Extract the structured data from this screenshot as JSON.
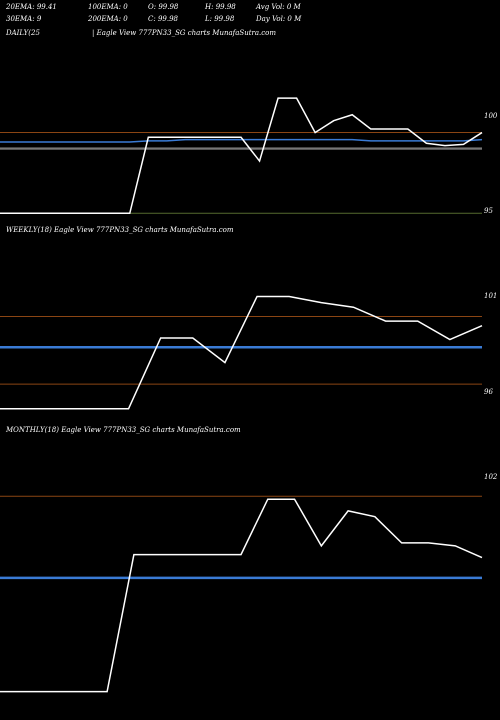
{
  "stats": {
    "ema20": "20EMA: 99.41",
    "ema100": "100EMA: 0",
    "open": "O: 99.98",
    "high": "H: 99.98",
    "avg_vol": "Avg Vol: 0  M",
    "ema30": "30EMA: 9",
    "ema200": "200EMA: 0",
    "close": "C: 99.98",
    "low": "L: 99.98",
    "day_vol": "Day Vol: 0  M"
  },
  "panels": [
    {
      "title": "DAILY(25",
      "subtitle": "| Eagle   View   777PN33_SG charts MunafaSutra.com"
    },
    {
      "title": "WEEKLY(18) Eagle   View   777PN33_SG charts MunafaSutra.com",
      "subtitle": ""
    },
    {
      "title": "MONTHLY(18) Eagle   View   777PN33_SG charts MunafaSutra.com",
      "subtitle": ""
    }
  ],
  "colors": {
    "background": "#000000",
    "price_line": "#ffffff",
    "ema_line": "#3a7bd5",
    "level_line": "#8b4513",
    "level_line_gray": "#888888",
    "level_line_green": "#556b2f"
  },
  "chart_data": [
    {
      "type": "line",
      "name": "daily",
      "y_ticks": [
        "100",
        "95"
      ],
      "ylim": [
        93.6,
        108.6
      ],
      "price": [
        94,
        94,
        94,
        94,
        94,
        94,
        94,
        94,
        100.4,
        100.4,
        100.4,
        100.4,
        100.4,
        100.4,
        98.4,
        103.7,
        103.7,
        100.8,
        101.8,
        102.3,
        101.1,
        101.1,
        101.1,
        99.9,
        99.7,
        99.8,
        100.8
      ],
      "ema": [
        100,
        100,
        100,
        100,
        100,
        100,
        100,
        100,
        100.1,
        100.1,
        100.2,
        100.2,
        100.2,
        100.2,
        100.2,
        100.2,
        100.2,
        100.2,
        100.2,
        100.2,
        100.1,
        100.1,
        100.1,
        100.1,
        100.1,
        100.1,
        100.2
      ],
      "levels": [
        {
          "value": 100.8,
          "color": "level"
        },
        {
          "value": 99.5,
          "color": "gray"
        },
        {
          "value": 99.4,
          "color": "gray"
        },
        {
          "value": 94,
          "color": "green"
        }
      ]
    },
    {
      "type": "line",
      "name": "weekly",
      "y_ticks": [
        "101",
        "96"
      ],
      "ylim": [
        94.6,
        106.3
      ],
      "price": [
        95.2,
        95.2,
        95.2,
        95.2,
        95.2,
        99.8,
        99.8,
        98.2,
        102.5,
        102.5,
        102.1,
        101.8,
        100.9,
        100.9,
        99.7,
        100.6
      ],
      "ema": [
        99.2,
        99.2,
        99.2,
        99.2,
        99.2,
        99.2,
        99.2,
        99.2,
        99.2,
        99.2,
        99.2,
        99.2,
        99.2,
        99.2,
        99.2,
        99.2
      ],
      "levels": [
        {
          "value": 101.2,
          "color": "level"
        },
        {
          "value": 96.8,
          "color": "level"
        }
      ]
    },
    {
      "type": "line",
      "name": "monthly",
      "y_ticks": [
        "102"
      ],
      "ylim": [
        94.5,
        103.9
      ],
      "price": [
        95.2,
        95.2,
        95.2,
        95.2,
        95.2,
        99.9,
        99.9,
        99.9,
        99.9,
        99.9,
        101.8,
        101.8,
        100.2,
        101.4,
        101.2,
        100.3,
        100.3,
        100.2,
        99.8
      ],
      "ema": [
        99.1,
        99.1,
        99.1,
        99.1,
        99.1,
        99.1,
        99.1,
        99.1,
        99.1,
        99.1,
        99.1,
        99.1,
        99.1,
        99.1,
        99.1,
        99.1,
        99.1,
        99.1,
        99.1
      ],
      "levels": [
        {
          "value": 101.9,
          "color": "level"
        }
      ]
    }
  ]
}
